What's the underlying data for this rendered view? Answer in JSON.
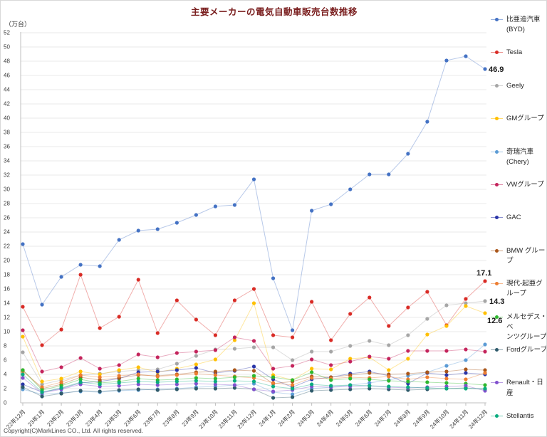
{
  "title": "主要メーカーの電気自動車販売台数推移",
  "y_axis_unit": "（万台）",
  "copyright": "Copyright(C)MarkLines CO., Ltd. All rights reserved.",
  "colors": {
    "title": "#7a1f1f",
    "gridline": "#e0e0e0",
    "axis": "#bfbfbf",
    "tick_label": "#3a3a3a",
    "end_label": "#1a1a1a"
  },
  "chart_data": {
    "type": "line",
    "title": "主要メーカーの電気自動車販売台数推移",
    "ylabel": "（万台）",
    "ylim": [
      0,
      52
    ],
    "ytick_step": 2,
    "grid": true,
    "legend_position": "right",
    "x": [
      "22年12月",
      "23年1月",
      "23年2月",
      "23年3月",
      "23年4月",
      "23年5月",
      "23年6月",
      "23年7月",
      "23年8月",
      "23年9月",
      "23年10月",
      "23年11月",
      "23年12月",
      "24年1月",
      "24年2月",
      "24年3月",
      "24年4月",
      "24年5月",
      "24年6月",
      "24年7月",
      "24年8月",
      "24年9月",
      "24年10月",
      "24年11月",
      "24年12月"
    ],
    "series": [
      {
        "name": "比亜迪汽車(BYD)",
        "label_lines": [
          "比亜迪汽車",
          "(BYD)"
        ],
        "color": "#4472c4",
        "values": [
          22.3,
          13.8,
          17.7,
          19.4,
          19.2,
          22.9,
          24.2,
          24.4,
          25.3,
          26.4,
          27.6,
          27.8,
          31.4,
          17.5,
          10.2,
          27.0,
          27.9,
          30.0,
          32.1,
          32.1,
          35.0,
          39.5,
          48.1,
          48.7,
          46.9
        ],
        "end_label": {
          "text": "46.9",
          "dx": 5,
          "dy": 4
        }
      },
      {
        "name": "Tesla",
        "label_lines": [
          "Tesla"
        ],
        "color": "#d92b25",
        "values": [
          13.5,
          8.1,
          10.3,
          18.0,
          10.5,
          12.1,
          17.3,
          9.8,
          14.4,
          11.7,
          9.5,
          14.4,
          16.0,
          9.5,
          9.2,
          14.2,
          8.8,
          12.5,
          14.8,
          10.8,
          13.4,
          15.6,
          10.9,
          14.6,
          17.1
        ],
        "end_label": {
          "text": "17.1",
          "dx": -12,
          "dy": -8
        }
      },
      {
        "name": "Geely",
        "label_lines": [
          "Geely"
        ],
        "color": "#a6a6a6",
        "values": [
          7.1,
          2.6,
          3.2,
          3.9,
          4.1,
          4.4,
          4.6,
          4.7,
          5.5,
          6.6,
          7.5,
          7.6,
          7.8,
          7.8,
          6.0,
          7.2,
          7.2,
          8.0,
          8.7,
          8.1,
          9.5,
          11.8,
          13.7,
          14.0,
          14.3
        ],
        "end_label": {
          "text": "14.3",
          "dx": 6,
          "dy": 4
        }
      },
      {
        "name": "GMグループ",
        "label_lines": [
          "GMグループ"
        ],
        "color": "#ffc000",
        "values": [
          9.3,
          3.0,
          3.4,
          4.4,
          4.0,
          4.6,
          5.0,
          4.3,
          4.8,
          5.4,
          6.1,
          8.8,
          14.0,
          3.9,
          3.2,
          4.8,
          4.7,
          6.2,
          6.4,
          4.6,
          6.2,
          9.6,
          10.8,
          13.6,
          12.6
        ],
        "end_label": {
          "text": "12.6",
          "dx": 3,
          "dy": 14
        }
      },
      {
        "name": "奇瑞汽車(Chery)",
        "label_lines": [
          "奇瑞汽車",
          "(Chery)"
        ],
        "color": "#5b9bd5",
        "values": [
          1.9,
          1.2,
          1.4,
          1.6,
          1.5,
          1.7,
          1.8,
          1.9,
          2.0,
          2.2,
          2.3,
          2.5,
          2.7,
          1.5,
          1.2,
          2.0,
          2.2,
          2.5,
          2.8,
          3.2,
          3.8,
          4.3,
          5.2,
          6.0,
          8.2
        ]
      },
      {
        "name": "VWグループ",
        "label_lines": [
          "VWグループ"
        ],
        "color": "#c4245c",
        "values": [
          10.2,
          4.4,
          5.0,
          6.3,
          4.8,
          5.3,
          6.8,
          6.4,
          7.0,
          7.2,
          7.4,
          9.2,
          8.7,
          4.8,
          5.2,
          6.1,
          5.3,
          5.8,
          6.5,
          6.2,
          7.3,
          7.3,
          7.3,
          7.5,
          7.2
        ]
      },
      {
        "name": "GAC",
        "label_lines": [
          "GAC"
        ],
        "color": "#2a35a8",
        "values": [
          2.6,
          1.5,
          2.0,
          2.8,
          3.0,
          3.4,
          4.3,
          4.4,
          4.6,
          4.9,
          4.2,
          4.5,
          5.1,
          3.3,
          2.2,
          3.3,
          3.6,
          4.1,
          4.4,
          3.8,
          2.7,
          4.2,
          3.9,
          4.2,
          4.0
        ]
      },
      {
        "name": "BMW グループ",
        "label_lines": [
          "BMW グループ"
        ],
        "color": "#a9561a",
        "values": [
          4.6,
          2.0,
          2.6,
          3.6,
          3.2,
          3.5,
          3.9,
          3.8,
          4.0,
          4.3,
          4.4,
          4.6,
          4.5,
          2.7,
          3.0,
          3.7,
          3.6,
          3.9,
          4.2,
          4.0,
          4.1,
          4.3,
          4.4,
          4.7,
          4.6
        ]
      },
      {
        "name": "現代-起亜グループ",
        "label_lines": [
          "現代-起亜グ",
          "ループ"
        ],
        "color": "#ed7d31",
        "values": [
          4.4,
          2.2,
          2.9,
          3.9,
          3.6,
          3.8,
          4.0,
          3.7,
          3.9,
          4.1,
          3.9,
          3.7,
          3.5,
          2.8,
          2.5,
          3.5,
          3.4,
          3.6,
          3.5,
          3.7,
          3.3,
          3.6,
          3.4,
          3.3,
          4.2
        ]
      },
      {
        "name": "メルセデス・ベンツグループ",
        "label_lines": [
          "メルセデス・ベ",
          "ンツグループ"
        ],
        "color": "#2eb82e",
        "values": [
          4.6,
          1.8,
          2.4,
          3.3,
          2.8,
          3.0,
          3.4,
          3.2,
          3.3,
          3.5,
          3.4,
          3.6,
          3.8,
          3.6,
          3.2,
          4.3,
          3.2,
          3.4,
          3.3,
          3.1,
          3.0,
          2.9,
          2.8,
          2.7,
          2.5
        ]
      },
      {
        "name": "Fordグループ",
        "label_lines": [
          "Fordグループ"
        ],
        "color": "#2e5a6b",
        "values": [
          2.2,
          0.9,
          1.3,
          1.7,
          1.6,
          1.8,
          1.9,
          1.8,
          1.9,
          2.0,
          2.0,
          2.1,
          1.9,
          0.7,
          0.8,
          1.7,
          1.8,
          1.9,
          2.0,
          1.9,
          1.8,
          1.9,
          2.0,
          2.1,
          1.9
        ]
      },
      {
        "name": "Renault・日産",
        "label_lines": [
          "Renault・日産"
        ],
        "color": "#8150ce",
        "values": [
          3.5,
          1.4,
          1.9,
          2.6,
          2.3,
          2.4,
          2.6,
          2.5,
          2.6,
          2.7,
          2.6,
          2.5,
          1.9,
          1.6,
          1.8,
          2.3,
          2.2,
          2.3,
          2.4,
          2.2,
          2.1,
          2.2,
          2.3,
          2.4,
          1.7
        ]
      },
      {
        "name": "Stellantis",
        "label_lines": [
          "Stellantis"
        ],
        "color": "#09ab7e",
        "values": [
          4.0,
          1.5,
          2.1,
          2.9,
          2.6,
          2.8,
          3.0,
          2.9,
          3.0,
          3.1,
          3.0,
          3.1,
          3.0,
          2.3,
          2.0,
          2.6,
          2.4,
          2.5,
          2.4,
          2.3,
          2.2,
          2.1,
          2.0,
          2.0,
          2.0
        ]
      }
    ]
  }
}
